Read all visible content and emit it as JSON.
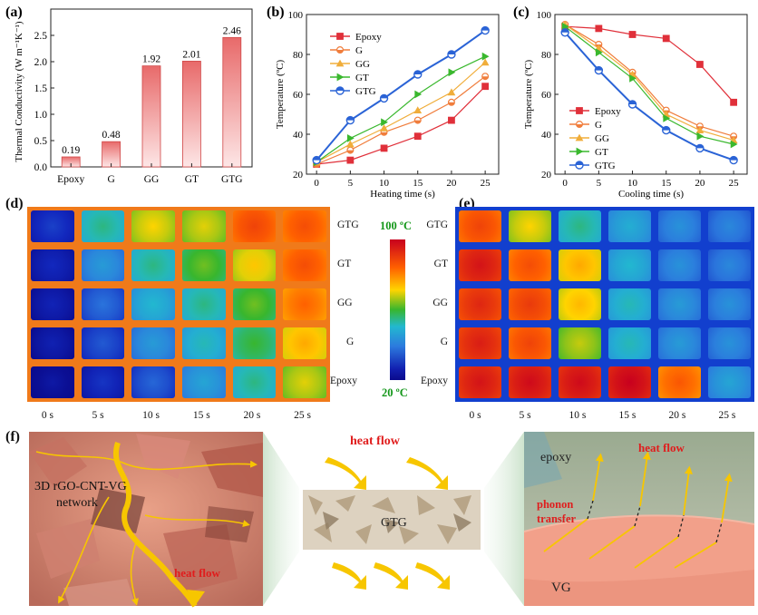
{
  "colors": {
    "epoxy": "#e0303a",
    "g": "#f07d3c",
    "gg": "#f0ad3a",
    "gt": "#3ab82e",
    "gtg": "#2a63d6",
    "bar_top": "#e86a6a",
    "bar_bottom": "#fde6e6",
    "flow_red": "#e01d1d",
    "flow_yellow": "#f7c600"
  },
  "chart_data": [
    {
      "id": "a",
      "type": "bar",
      "panel_label": "(a)",
      "categories": [
        "Epoxy",
        "G",
        "GG",
        "GT",
        "GTG"
      ],
      "values": [
        0.19,
        0.48,
        1.92,
        2.01,
        2.46
      ],
      "value_labels": [
        "0.19",
        "0.48",
        "1.92",
        "2.01",
        "2.46"
      ],
      "ylabel": "Thermal Conductivity (W m⁻¹K⁻¹)",
      "ylim": [
        0,
        3.0
      ],
      "yticks": [
        0,
        0.5,
        1.0,
        1.5,
        2.0,
        2.5
      ],
      "ytick_labels": [
        "0.0",
        "0.5",
        "1.0",
        "1.5",
        "2.0",
        "2.5"
      ]
    },
    {
      "id": "b",
      "type": "line",
      "panel_label": "(b)",
      "x": [
        0,
        5,
        10,
        15,
        20,
        25
      ],
      "xlabel": "Heating time (s)",
      "ylabel": "Temperature (ºC)",
      "xlim": [
        -1.5,
        27
      ],
      "ylim": [
        20,
        100
      ],
      "xticks": [
        0,
        5,
        10,
        15,
        20,
        25
      ],
      "yticks": [
        20,
        40,
        60,
        80,
        100
      ],
      "legend_position": "top-left",
      "series": [
        {
          "name": "Epoxy",
          "color_key": "epoxy",
          "marker": "square",
          "values": [
            25,
            27,
            33,
            39,
            47,
            64
          ]
        },
        {
          "name": "G",
          "color_key": "g",
          "marker": "circle-half",
          "values": [
            25,
            32,
            41,
            47,
            56,
            69
          ]
        },
        {
          "name": "GG",
          "color_key": "gg",
          "marker": "triangle",
          "values": [
            26,
            35,
            43,
            52,
            61,
            76
          ]
        },
        {
          "name": "GT",
          "color_key": "gt",
          "marker": "triangle-right",
          "values": [
            26,
            38,
            46,
            60,
            71,
            79
          ]
        },
        {
          "name": "GTG",
          "color_key": "gtg",
          "marker": "circle",
          "values": [
            27,
            47,
            58,
            70,
            80,
            92
          ]
        }
      ]
    },
    {
      "id": "c",
      "type": "line",
      "panel_label": "(c)",
      "x": [
        0,
        5,
        10,
        15,
        20,
        25
      ],
      "xlabel": "Cooling time (s)",
      "ylabel": "Temperature (ºC)",
      "xlim": [
        -1.5,
        27
      ],
      "ylim": [
        20,
        100
      ],
      "xticks": [
        0,
        5,
        10,
        15,
        20,
        25
      ],
      "yticks": [
        20,
        40,
        60,
        80,
        100
      ],
      "legend_position": "center-left",
      "series": [
        {
          "name": "Epoxy",
          "color_key": "epoxy",
          "marker": "square",
          "values": [
            94,
            93,
            90,
            88,
            75,
            56
          ]
        },
        {
          "name": "G",
          "color_key": "g",
          "marker": "circle-half",
          "values": [
            95,
            85,
            71,
            52,
            44,
            39
          ]
        },
        {
          "name": "GG",
          "color_key": "gg",
          "marker": "triangle",
          "values": [
            95,
            83,
            70,
            50,
            42,
            37
          ]
        },
        {
          "name": "GT",
          "color_key": "gt",
          "marker": "triangle-right",
          "values": [
            94,
            81,
            68,
            48,
            39,
            35
          ]
        },
        {
          "name": "GTG",
          "color_key": "gtg",
          "marker": "circle",
          "values": [
            91,
            72,
            55,
            42,
            33,
            27
          ]
        }
      ]
    }
  ],
  "thermal": {
    "rows": [
      "GTG",
      "GT",
      "GG",
      "G",
      "Epoxy"
    ],
    "times": [
      "0 s",
      "5 s",
      "10 s",
      "15 s",
      "20 s",
      "25 s"
    ],
    "d_label": "(d)",
    "e_label": "(e)",
    "colorbar_max": "100 ºC",
    "colorbar_min": "20 ºC",
    "d_levels": [
      [
        0.12,
        0.4,
        0.6,
        0.58,
        0.82,
        0.8
      ],
      [
        0.08,
        0.28,
        0.4,
        0.5,
        0.62,
        0.8
      ],
      [
        0.06,
        0.2,
        0.34,
        0.4,
        0.5,
        0.76
      ],
      [
        0.05,
        0.16,
        0.28,
        0.36,
        0.46,
        0.66
      ],
      [
        0.02,
        0.1,
        0.18,
        0.3,
        0.4,
        0.58
      ]
    ],
    "e_levels": [
      [
        0.82,
        0.6,
        0.4,
        0.32,
        0.26,
        0.24
      ],
      [
        0.92,
        0.8,
        0.66,
        0.34,
        0.26,
        0.24
      ],
      [
        0.88,
        0.84,
        0.64,
        0.36,
        0.28,
        0.26
      ],
      [
        0.9,
        0.82,
        0.56,
        0.36,
        0.28,
        0.26
      ],
      [
        0.92,
        0.94,
        0.94,
        0.96,
        0.78,
        0.3
      ]
    ]
  },
  "schematic": {
    "panel_label": "(f)",
    "network_label_line1": "3D rGO-CNT-VG",
    "network_label_line2": "network",
    "heat_flow": "heat flow",
    "gtg_label": "GTG",
    "epoxy_label": "epoxy",
    "phonon_line1": "phonon",
    "phonon_line2": "transfer",
    "vg_label": "VG"
  }
}
